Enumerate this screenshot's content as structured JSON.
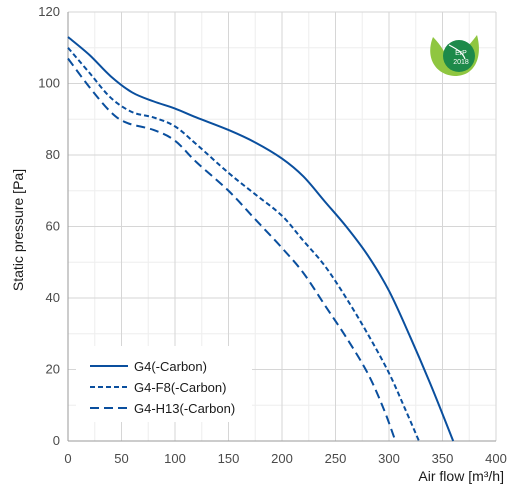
{
  "chart_data": {
    "type": "line",
    "title": "",
    "xlabel": "Air flow [m³/h]",
    "ylabel": "Static pressure [Pa]",
    "xlim": [
      0,
      400
    ],
    "ylim": [
      0,
      120
    ],
    "x_ticks": [
      0,
      50,
      100,
      150,
      200,
      250,
      300,
      350,
      400
    ],
    "y_ticks": [
      0,
      20,
      40,
      60,
      80,
      100,
      120
    ],
    "x_minor_step": 25,
    "y_minor_step": 10,
    "grid": true,
    "legend_position": "bottom-left",
    "line_color": "#0a4f9e",
    "series": [
      {
        "name": "G4(-Carbon)",
        "dash": "solid",
        "points": [
          [
            0,
            113
          ],
          [
            20,
            108
          ],
          [
            40,
            102
          ],
          [
            60,
            97.5
          ],
          [
            80,
            95
          ],
          [
            100,
            93
          ],
          [
            120,
            90.5
          ],
          [
            150,
            87
          ],
          [
            175,
            83.5
          ],
          [
            200,
            79
          ],
          [
            220,
            74
          ],
          [
            240,
            67
          ],
          [
            260,
            60
          ],
          [
            280,
            52
          ],
          [
            300,
            42
          ],
          [
            320,
            29
          ],
          [
            340,
            15
          ],
          [
            360,
            0
          ]
        ]
      },
      {
        "name": "G4-F8(-Carbon)",
        "dash": "short",
        "points": [
          [
            0,
            110
          ],
          [
            20,
            103
          ],
          [
            40,
            96
          ],
          [
            60,
            92
          ],
          [
            80,
            90.5
          ],
          [
            100,
            88
          ],
          [
            120,
            83
          ],
          [
            150,
            75
          ],
          [
            175,
            69
          ],
          [
            200,
            63
          ],
          [
            220,
            56
          ],
          [
            240,
            49
          ],
          [
            260,
            40
          ],
          [
            280,
            30
          ],
          [
            300,
            19
          ],
          [
            315,
            9
          ],
          [
            328,
            0
          ]
        ]
      },
      {
        "name": "G4-H13(-Carbon)",
        "dash": "long",
        "points": [
          [
            0,
            107
          ],
          [
            20,
            99
          ],
          [
            40,
            92
          ],
          [
            55,
            89
          ],
          [
            80,
            87
          ],
          [
            100,
            84
          ],
          [
            120,
            78
          ],
          [
            150,
            70
          ],
          [
            175,
            62
          ],
          [
            200,
            54
          ],
          [
            220,
            47
          ],
          [
            240,
            38
          ],
          [
            260,
            29
          ],
          [
            280,
            19
          ],
          [
            295,
            9
          ],
          [
            306,
            0
          ]
        ]
      }
    ]
  },
  "badge": {
    "line1": "ErP",
    "line2": "2018",
    "color_outer": "#8fc640",
    "color_inner": "#1d8a4a"
  }
}
